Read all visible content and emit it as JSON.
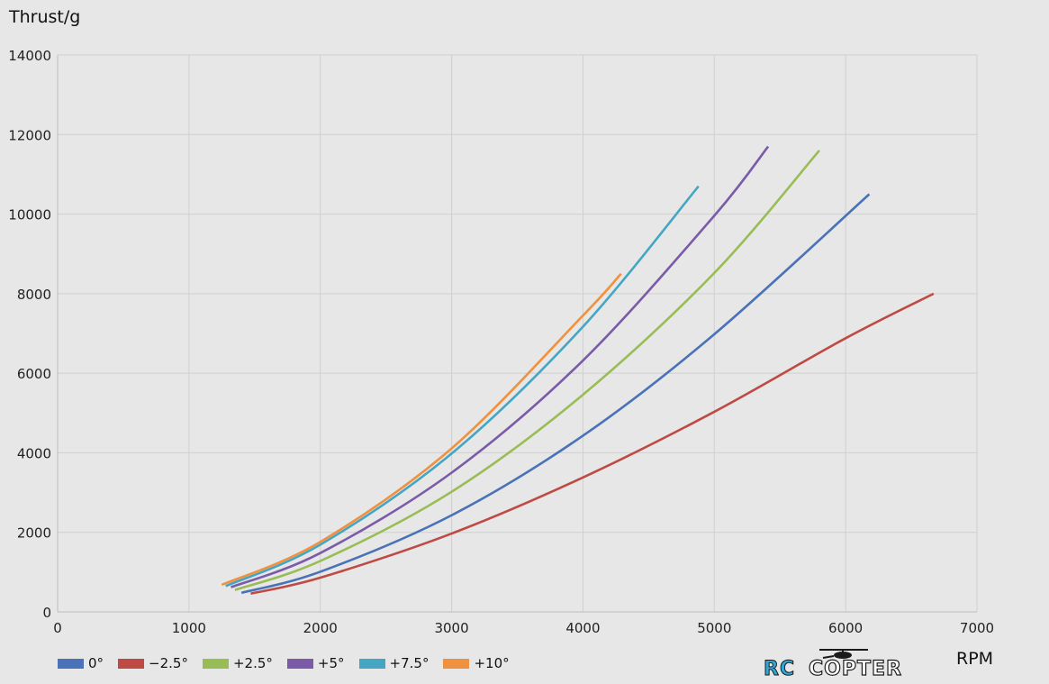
{
  "chart_data": {
    "type": "line",
    "ylabel": "Thrust/g",
    "xlabel": "RPM",
    "xlim": [
      0,
      7000
    ],
    "ylim": [
      0,
      14000
    ],
    "x_ticks": [
      "0",
      "1000",
      "2000",
      "3000",
      "4000",
      "5000",
      "6000",
      "7000"
    ],
    "y_ticks": [
      "0",
      "2000",
      "4000",
      "6000",
      "8000",
      "10000",
      "12000",
      "14000"
    ],
    "grid": true,
    "legend_position": "bottom-left",
    "series": [
      {
        "name": "0°",
        "color": "#4a72b8",
        "points": [
          [
            1400,
            480
          ],
          [
            2000,
            1010
          ],
          [
            3000,
            2430
          ],
          [
            4000,
            4430
          ],
          [
            5000,
            6980
          ],
          [
            6180,
            10500
          ]
        ]
      },
      {
        "name": "−2.5°",
        "color": "#bf4a44",
        "points": [
          [
            1470,
            460
          ],
          [
            2000,
            860
          ],
          [
            3000,
            1970
          ],
          [
            4000,
            3380
          ],
          [
            5000,
            5030
          ],
          [
            6000,
            6880
          ],
          [
            6670,
            8000
          ]
        ]
      },
      {
        "name": "+2.5°",
        "color": "#98bd55",
        "points": [
          [
            1350,
            550
          ],
          [
            2000,
            1280
          ],
          [
            3000,
            3020
          ],
          [
            4000,
            5460
          ],
          [
            5000,
            8520
          ],
          [
            5800,
            11600
          ]
        ]
      },
      {
        "name": "+5°",
        "color": "#7b5ba8",
        "points": [
          [
            1320,
            620
          ],
          [
            2000,
            1480
          ],
          [
            3000,
            3500
          ],
          [
            4000,
            6320
          ],
          [
            5000,
            9960
          ],
          [
            5410,
            11700
          ]
        ]
      },
      {
        "name": "+7.5°",
        "color": "#45a6c4",
        "points": [
          [
            1280,
            650
          ],
          [
            2000,
            1690
          ],
          [
            3000,
            3980
          ],
          [
            4000,
            7170
          ],
          [
            4880,
            10700
          ]
        ]
      },
      {
        "name": "+10°",
        "color": "#f0913f",
        "points": [
          [
            1250,
            680
          ],
          [
            2000,
            1760
          ],
          [
            3000,
            4110
          ],
          [
            4000,
            7450
          ],
          [
            4290,
            8500
          ]
        ]
      }
    ]
  },
  "brand": {
    "part1": "RC",
    "part2": "COPTER"
  }
}
